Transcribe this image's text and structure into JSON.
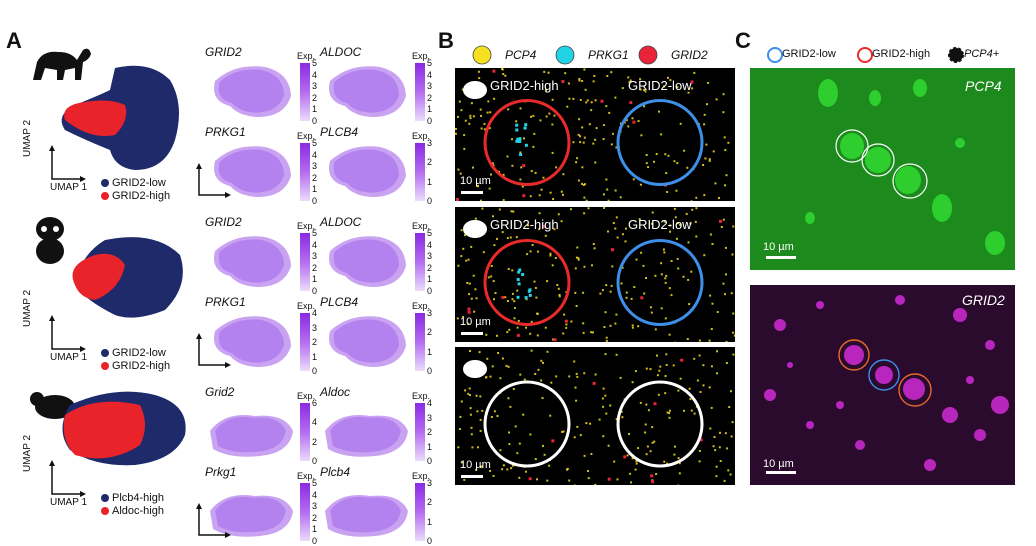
{
  "panels": {
    "A": "A",
    "B": "B",
    "C": "C"
  },
  "colors": {
    "low": "#1f2a6b",
    "high": "#e8232a",
    "pcp4": "#f5e11f",
    "prkg1": "#22d3e6",
    "grid2": "#e8233a",
    "blue_circle": "#3d8fe8",
    "red_circle": "#e82a2a",
    "green_fluor": "#1fa01f",
    "magenta_fluor": "#c21ec8"
  },
  "panelA": {
    "species": [
      {
        "legend": [
          "GRID2-low",
          "GRID2-high"
        ],
        "umap1": "UMAP 1",
        "umap2": "UMAP 2",
        "genes": [
          {
            "name": "GRID2",
            "exp": "Exp.",
            "ticks": [
              "5",
              "4",
              "3",
              "2",
              "1",
              "0"
            ]
          },
          {
            "name": "ALDOC",
            "exp": "Exp.",
            "ticks": [
              "5",
              "4",
              "3",
              "2",
              "1",
              "0"
            ]
          },
          {
            "name": "PRKG1",
            "exp": "Exp.",
            "ticks": [
              "5",
              "4",
              "3",
              "2",
              "1",
              "0"
            ]
          },
          {
            "name": "PLCB4",
            "exp": "Exp.",
            "ticks": [
              "3",
              "2",
              "1",
              "0"
            ]
          }
        ]
      },
      {
        "legend": [
          "GRID2-low",
          "GRID2-high"
        ],
        "umap1": "UMAP 1",
        "umap2": "UMAP 2",
        "genes": [
          {
            "name": "GRID2",
            "exp": "Exp.",
            "ticks": [
              "5",
              "4",
              "3",
              "2",
              "1",
              "0"
            ]
          },
          {
            "name": "ALDOC",
            "exp": "Exp.",
            "ticks": [
              "5",
              "4",
              "3",
              "2",
              "1",
              "0"
            ]
          },
          {
            "name": "PRKG1",
            "exp": "Exp.",
            "ticks": [
              "4",
              "3",
              "2",
              "1",
              "0"
            ]
          },
          {
            "name": "PLCB4",
            "exp": "Exp.",
            "ticks": [
              "3",
              "2",
              "1",
              "0"
            ]
          }
        ]
      },
      {
        "legend": [
          "Plcb4-high",
          "Aldoc-high"
        ],
        "umap1": "UMAP 1",
        "umap2": "UMAP 2",
        "genes": [
          {
            "name": "Grid2",
            "exp": "Exp.",
            "ticks": [
              "6",
              "4",
              "2",
              "0"
            ]
          },
          {
            "name": "Aldoc",
            "exp": "Exp.",
            "ticks": [
              "4",
              "3",
              "2",
              "1",
              "0"
            ]
          },
          {
            "name": "Prkg1",
            "exp": "Exp.",
            "ticks": [
              "5",
              "4",
              "3",
              "2",
              "1",
              "0"
            ]
          },
          {
            "name": "Plcb4",
            "exp": "Exp.",
            "ticks": [
              "3",
              "2",
              "1",
              "0"
            ]
          }
        ]
      }
    ]
  },
  "panelB": {
    "legend": [
      "PCP4",
      "PRKG1",
      "GRID2"
    ],
    "rows": [
      {
        "high": "GRID2-high",
        "low": "GRID2-low",
        "scale": "10 µm"
      },
      {
        "high": "GRID2-high",
        "low": "GRID2-low",
        "scale": "10 µm"
      },
      {
        "high": "",
        "low": "",
        "scale": "10 µm"
      }
    ]
  },
  "panelC": {
    "legend": [
      "GRID2-low",
      "GRID2-high",
      "PCP4+"
    ],
    "top_label": "PCP4",
    "bottom_label": "GRID2",
    "scale": "10 µm"
  }
}
